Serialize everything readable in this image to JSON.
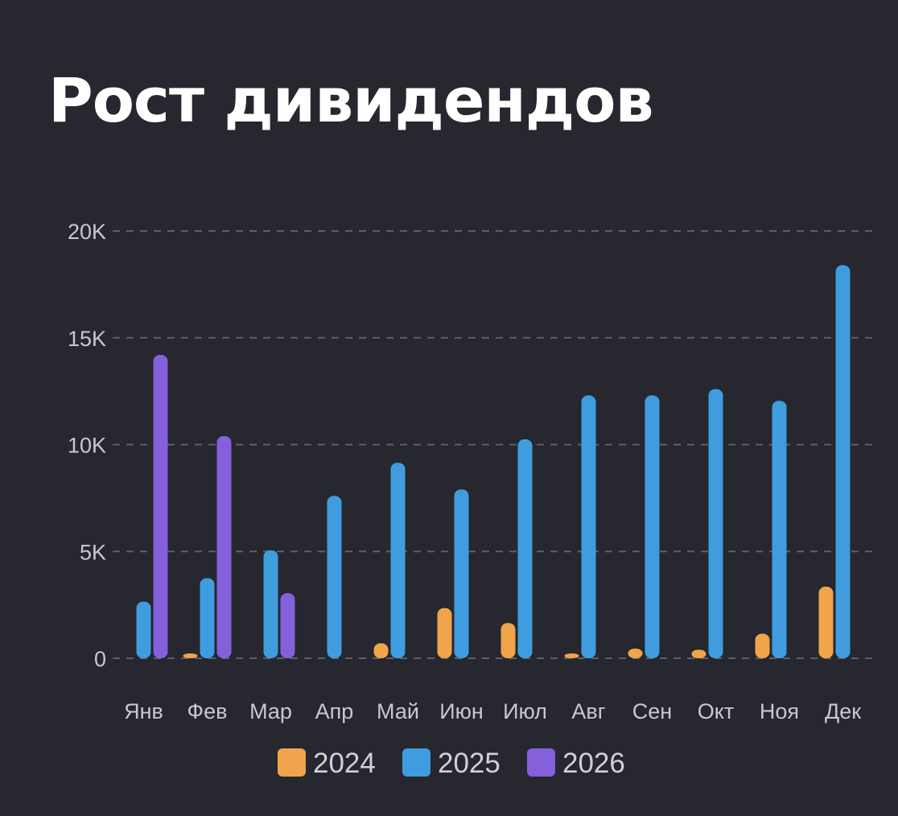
{
  "chart_data": {
    "type": "bar",
    "title": "Рост дивидендов",
    "xlabel": "",
    "ylabel": "",
    "ylim": [
      0,
      20000
    ],
    "y_ticks": [
      {
        "value": 0,
        "label": "0"
      },
      {
        "value": 5000,
        "label": "5K"
      },
      {
        "value": 10000,
        "label": "10K"
      },
      {
        "value": 15000,
        "label": "15K"
      },
      {
        "value": 20000,
        "label": "20K"
      }
    ],
    "grid": "horizontal-dashed",
    "legend_position": "bottom",
    "categories": [
      "Янв",
      "Фев",
      "Мар",
      "Апр",
      "Май",
      "Июн",
      "Июл",
      "Авг",
      "Сен",
      "Окт",
      "Ноя",
      "Дек"
    ],
    "series": [
      {
        "name": "2024",
        "color": "#f0a44b",
        "values": [
          0,
          150,
          0,
          0,
          700,
          2350,
          1650,
          150,
          450,
          400,
          1150,
          3350
        ]
      },
      {
        "name": "2025",
        "color": "#3f9ddf",
        "values": [
          2650,
          3750,
          5050,
          7600,
          9150,
          7900,
          10250,
          12300,
          12300,
          12600,
          12050,
          18400
        ]
      },
      {
        "name": "2026",
        "color": "#8460da",
        "values": [
          14200,
          10400,
          3050,
          0,
          0,
          0,
          0,
          0,
          0,
          0,
          0,
          0
        ]
      }
    ]
  }
}
